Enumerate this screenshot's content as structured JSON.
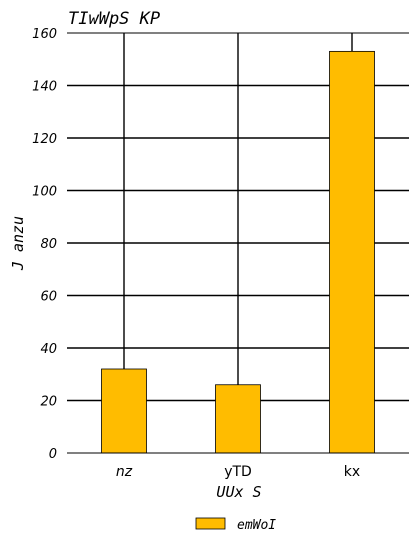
{
  "chart_data": {
    "type": "bar",
    "title": "TIwWpS KP",
    "xlabel": "UUx S",
    "ylabel": "J anzu",
    "categories": [
      "nz",
      "yTD",
      "kx"
    ],
    "category_italic": [
      true,
      false,
      false
    ],
    "series": [
      {
        "name": "emWoI",
        "values": [
          32,
          26,
          153
        ],
        "color": "#FFBC00"
      }
    ],
    "ylim": [
      0,
      160
    ],
    "yticks": [
      0,
      20,
      40,
      60,
      80,
      100,
      120,
      140,
      160
    ],
    "grid": true,
    "legend_position": "bottom-center"
  }
}
